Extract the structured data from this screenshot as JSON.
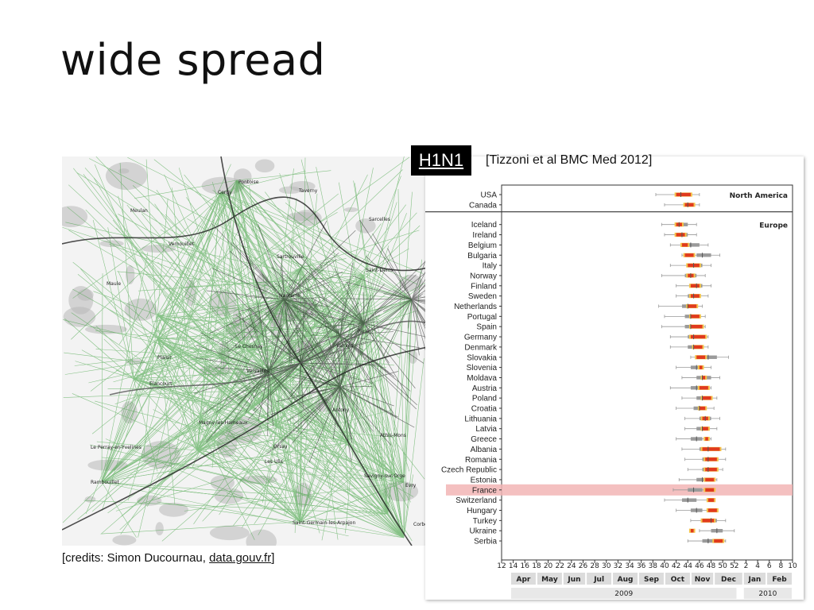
{
  "slide": {
    "title": "wide spread",
    "badge": "H1N1",
    "citation": "[Tizzoni et al BMC Med 2012]",
    "credits_prefix": "[credits: Simon Ducournau, ",
    "credits_link": "data.gouv.fr",
    "credits_suffix": "]"
  },
  "map": {
    "place_labels": [
      "Pontoise",
      "Cergy",
      "Taverny",
      "Meulan",
      "Sarcelles",
      "Vernouillet",
      "Sartrouville",
      "Saint-Denis",
      "Maule",
      "Nanterre",
      "Paris",
      "Le Chesnay",
      "Versailles",
      "Vanves",
      "Plaisir",
      "Elancourt",
      "Antony",
      "Magny-les-Hameaux",
      "Orsay",
      "Athis-Mons",
      "Le Perray-en-Yvelines",
      "Les Ulis",
      "Savigny-sur-Orge",
      "Rambouillet",
      "Saint-Germain-les-Arpajon",
      "Evry",
      "Corbeil"
    ],
    "colors": {
      "routes": "#2e9a2e",
      "dense_routes": "#1b1b1b",
      "urban": "#b8b8b8",
      "background": "#f3f3f3"
    }
  },
  "chart_data": {
    "type": "range-plot",
    "x_ticks": [
      "12",
      "14",
      "16",
      "18",
      "20",
      "22",
      "24",
      "26",
      "28",
      "30",
      "32",
      "34",
      "36",
      "38",
      "40",
      "42",
      "44",
      "46",
      "48",
      "50",
      "52",
      "2",
      "4",
      "6",
      "8",
      "10"
    ],
    "months": [
      "Apr",
      "May",
      "Jun",
      "Jul",
      "Aug",
      "Sep",
      "Oct",
      "Nov",
      "Dec",
      "Jan",
      "Feb"
    ],
    "years": [
      "2009",
      "2010"
    ],
    "groups": [
      {
        "label": "North America",
        "countries": [
          "USA",
          "Canada"
        ]
      },
      {
        "label": "Europe",
        "countries": [
          "Iceland",
          "Ireland",
          "Belgium",
          "Bulgaria",
          "Italy",
          "Norway",
          "Finland",
          "Sweden",
          "Netherlands",
          "Portugal",
          "Spain",
          "Germany",
          "Denmark",
          "Slovakia",
          "Slovenia",
          "Moldava",
          "Austria",
          "Poland",
          "Croatia",
          "Lithuania",
          "Latvia",
          "Greece",
          "Albania",
          "Romania",
          "Czech Republic",
          "Estonia",
          "France",
          "Switzerland",
          "Hungary",
          "Turkey",
          "Ukraine",
          "Serbia"
        ]
      }
    ],
    "highlight": "France",
    "rows": [
      {
        "country": "USA",
        "min": 38.5,
        "q1": 42,
        "median": 42.8,
        "q3": 44,
        "max": 46,
        "obs_start": 42,
        "obs_end": 44.5
      },
      {
        "country": "Canada",
        "min": 40,
        "q1": 43.5,
        "median": 44,
        "q3": 45,
        "max": 46,
        "obs_start": 43.5,
        "obs_end": 45
      },
      {
        "country": "Iceland",
        "min": 39.5,
        "q1": 42,
        "median": 42.5,
        "q3": 44,
        "max": 45.5,
        "obs_start": 42,
        "obs_end": 43
      },
      {
        "country": "Ireland",
        "min": 40,
        "q1": 42.5,
        "median": 43,
        "q3": 44,
        "max": 45.5,
        "obs_start": 42,
        "obs_end": 43.5
      },
      {
        "country": "Belgium",
        "min": 41,
        "q1": 43.5,
        "median": 44.5,
        "q3": 46,
        "max": 47.5,
        "obs_start": 43,
        "obs_end": 44
      },
      {
        "country": "Bulgaria",
        "min": 43,
        "q1": 45.5,
        "median": 46.5,
        "q3": 48,
        "max": 49.5,
        "obs_start": 43.5,
        "obs_end": 45
      },
      {
        "country": "Italy",
        "min": 41,
        "q1": 44,
        "median": 45,
        "q3": 46.5,
        "max": 48,
        "obs_start": 44,
        "obs_end": 46
      },
      {
        "country": "Norway",
        "min": 39.5,
        "q1": 43.5,
        "median": 44.5,
        "q3": 45.5,
        "max": 47,
        "obs_start": 44,
        "obs_end": 45
      },
      {
        "country": "Finland",
        "min": 42,
        "q1": 44.5,
        "median": 45.5,
        "q3": 46.5,
        "max": 48,
        "obs_start": 44.5,
        "obs_end": 46
      },
      {
        "country": "Sweden",
        "min": 42,
        "q1": 44,
        "median": 45,
        "q3": 46,
        "max": 47.5,
        "obs_start": 44.5,
        "obs_end": 46
      },
      {
        "country": "Netherlands",
        "min": 39,
        "q1": 43,
        "median": 44,
        "q3": 45,
        "max": 46.5,
        "obs_start": 44,
        "obs_end": 45.5
      },
      {
        "country": "Portugal",
        "min": 40,
        "q1": 43.5,
        "median": 44.5,
        "q3": 45.5,
        "max": 47,
        "obs_start": 44.5,
        "obs_end": 46
      },
      {
        "country": "Spain",
        "min": 39.5,
        "q1": 43.5,
        "median": 44.5,
        "q3": 45.5,
        "max": 47,
        "obs_start": 44.5,
        "obs_end": 46.5
      },
      {
        "country": "Germany",
        "min": 41,
        "q1": 44,
        "median": 45,
        "q3": 46,
        "max": 47.5,
        "obs_start": 44.5,
        "obs_end": 47
      },
      {
        "country": "Denmark",
        "min": 41,
        "q1": 44,
        "median": 45,
        "q3": 46,
        "max": 47.5,
        "obs_start": 45,
        "obs_end": 46.5
      },
      {
        "country": "Slovakia",
        "min": 44.5,
        "q1": 46.5,
        "median": 47.5,
        "q3": 49,
        "max": 51,
        "obs_start": 45.5,
        "obs_end": 47
      },
      {
        "country": "Slovenia",
        "min": 42,
        "q1": 44.5,
        "median": 45.5,
        "q3": 46.5,
        "max": 48,
        "obs_start": 46,
        "obs_end": 46.5
      },
      {
        "country": "Moldava",
        "min": 43,
        "q1": 45.5,
        "median": 46.5,
        "q3": 48,
        "max": 49.5,
        "obs_start": 46.5,
        "obs_end": 47
      },
      {
        "country": "Austria",
        "min": 41,
        "q1": 44.5,
        "median": 45.5,
        "q3": 46.5,
        "max": 48,
        "obs_start": 46,
        "obs_end": 47.5
      },
      {
        "country": "Poland",
        "min": 43,
        "q1": 45.5,
        "median": 46.5,
        "q3": 47.5,
        "max": 49,
        "obs_start": 46.5,
        "obs_end": 48
      },
      {
        "country": "Croatia",
        "min": 42,
        "q1": 45,
        "median": 46,
        "q3": 47,
        "max": 48.5,
        "obs_start": 46,
        "obs_end": 47
      },
      {
        "country": "Lithuania",
        "min": 43.5,
        "q1": 46,
        "median": 47,
        "q3": 48,
        "max": 49.5,
        "obs_start": 46.5,
        "obs_end": 47.5
      },
      {
        "country": "Latvia",
        "min": 43.5,
        "q1": 45.5,
        "median": 46.5,
        "q3": 47.5,
        "max": 49,
        "obs_start": 46.5,
        "obs_end": 47.5
      },
      {
        "country": "Greece",
        "min": 42,
        "q1": 44.5,
        "median": 45.5,
        "q3": 46.5,
        "max": 48,
        "obs_start": 47,
        "obs_end": 47.5
      },
      {
        "country": "Albania",
        "min": 43,
        "q1": 46,
        "median": 47.5,
        "q3": 49,
        "max": 50.5,
        "obs_start": 46.5,
        "obs_end": 49.5
      },
      {
        "country": "Romania",
        "min": 43.5,
        "q1": 46.5,
        "median": 47.5,
        "q3": 48.5,
        "max": 50.5,
        "obs_start": 47,
        "obs_end": 49
      },
      {
        "country": "Czech Republic",
        "min": 44,
        "q1": 46.5,
        "median": 47.5,
        "q3": 48.5,
        "max": 50,
        "obs_start": 47,
        "obs_end": 49
      },
      {
        "country": "Estonia",
        "min": 42.5,
        "q1": 45.5,
        "median": 46.5,
        "q3": 47.5,
        "max": 49,
        "obs_start": 47,
        "obs_end": 48.5
      },
      {
        "country": "France",
        "min": 41.5,
        "q1": 44,
        "median": 45,
        "q3": 46.5,
        "max": 48.5,
        "obs_start": 47,
        "obs_end": 48.5
      },
      {
        "country": "Switzerland",
        "min": 40,
        "q1": 43,
        "median": 44,
        "q3": 45.5,
        "max": 47.5,
        "obs_start": 47.5,
        "obs_end": 48.5
      },
      {
        "country": "Hungary",
        "min": 42,
        "q1": 44.5,
        "median": 45.5,
        "q3": 46.5,
        "max": 48,
        "obs_start": 47.5,
        "obs_end": 49
      },
      {
        "country": "Turkey",
        "min": 44.5,
        "q1": 47,
        "median": 48,
        "q3": 49,
        "max": 50.5,
        "obs_start": 46.5,
        "obs_end": 48.5
      },
      {
        "country": "Ukraine",
        "min": 46,
        "q1": 48,
        "median": 49,
        "q3": 50,
        "max": 52,
        "obs_start": 44.5,
        "obs_end": 45
      },
      {
        "country": "Serbia",
        "min": 44,
        "q1": 46.5,
        "median": 47.5,
        "q3": 48.5,
        "max": 50.5,
        "obs_start": 48.5,
        "obs_end": 50
      }
    ],
    "colors": {
      "box": "#9a9a9a",
      "whisker": "#999999",
      "obs_core": "#e03a1e",
      "obs_edge": "#f5c44a",
      "highlight": "#f2b5b5",
      "month_band": "#dcdcdc"
    }
  }
}
